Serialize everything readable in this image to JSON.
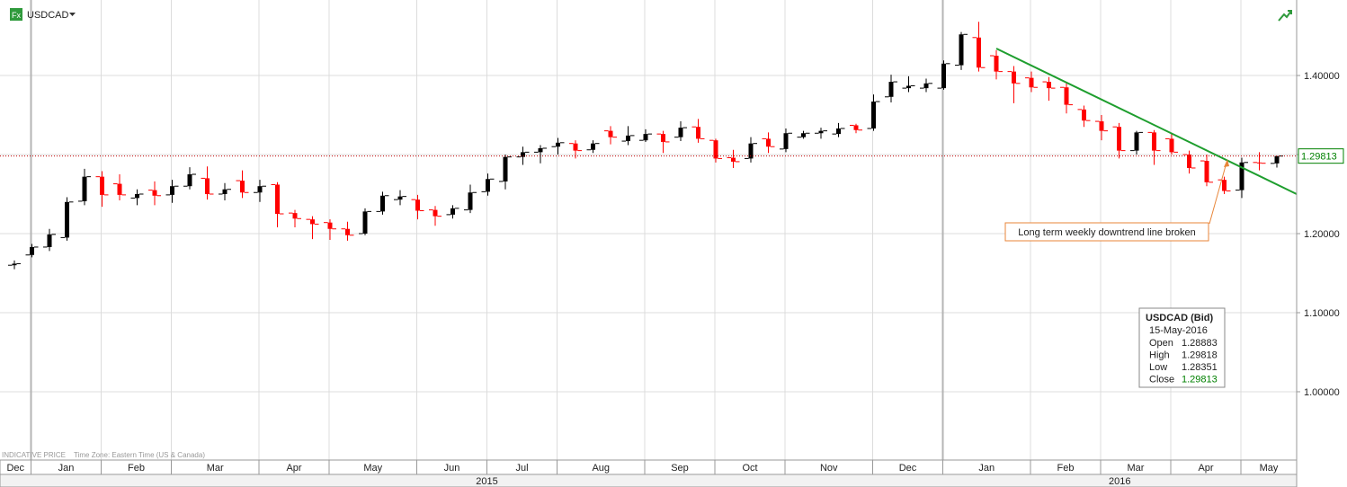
{
  "chart_data": {
    "type": "candlestick",
    "series": [
      {
        "name": "USDCAD",
        "up_color": "#000000",
        "down_color": "#ff0000",
        "open": [
          1.16,
          1.173,
          1.183,
          1.195,
          1.241,
          1.272,
          1.263,
          1.245,
          1.255,
          1.249,
          1.26,
          1.27,
          1.25,
          1.267,
          1.252,
          1.262,
          1.226,
          1.218,
          1.214,
          1.206,
          1.2,
          1.228,
          1.243,
          1.243,
          1.23,
          1.224,
          1.23,
          1.253,
          1.266,
          1.297,
          1.303,
          1.31,
          1.314,
          1.306,
          1.33,
          1.317,
          1.318,
          1.326,
          1.322,
          1.335,
          1.318,
          1.296,
          1.295,
          1.32,
          1.307,
          1.322,
          1.327,
          1.326,
          1.337,
          1.333,
          1.373,
          1.384,
          1.384,
          1.384,
          1.413,
          1.448,
          1.425,
          1.405,
          1.397,
          1.392,
          1.385,
          1.357,
          1.342,
          1.335,
          1.305,
          1.328,
          1.32,
          1.3,
          1.292,
          1.268,
          1.255,
          1.29,
          1.28883
        ],
        "high": [
          1.166,
          1.187,
          1.206,
          1.246,
          1.282,
          1.279,
          1.275,
          1.256,
          1.266,
          1.268,
          1.284,
          1.285,
          1.264,
          1.28,
          1.268,
          1.265,
          1.23,
          1.222,
          1.218,
          1.215,
          1.232,
          1.253,
          1.255,
          1.249,
          1.235,
          1.236,
          1.262,
          1.276,
          1.3,
          1.31,
          1.312,
          1.321,
          1.318,
          1.318,
          1.336,
          1.336,
          1.332,
          1.33,
          1.342,
          1.345,
          1.32,
          1.306,
          1.322,
          1.328,
          1.333,
          1.33,
          1.334,
          1.34,
          1.339,
          1.376,
          1.401,
          1.399,
          1.396,
          1.419,
          1.455,
          1.468,
          1.432,
          1.412,
          1.405,
          1.398,
          1.392,
          1.362,
          1.35,
          1.34,
          1.33,
          1.331,
          1.326,
          1.305,
          1.3,
          1.272,
          1.296,
          1.303,
          1.29818
        ],
        "low": [
          1.155,
          1.17,
          1.178,
          1.191,
          1.236,
          1.234,
          1.242,
          1.236,
          1.236,
          1.239,
          1.256,
          1.243,
          1.242,
          1.245,
          1.24,
          1.208,
          1.208,
          1.193,
          1.192,
          1.191,
          1.198,
          1.224,
          1.236,
          1.218,
          1.21,
          1.219,
          1.226,
          1.248,
          1.256,
          1.287,
          1.289,
          1.3,
          1.295,
          1.302,
          1.313,
          1.312,
          1.316,
          1.302,
          1.317,
          1.315,
          1.29,
          1.283,
          1.29,
          1.302,
          1.303,
          1.32,
          1.32,
          1.322,
          1.327,
          1.33,
          1.366,
          1.379,
          1.379,
          1.382,
          1.407,
          1.405,
          1.395,
          1.365,
          1.379,
          1.368,
          1.352,
          1.335,
          1.318,
          1.295,
          1.3,
          1.287,
          1.3,
          1.276,
          1.26,
          1.25,
          1.245,
          1.28,
          1.28351
        ],
        "close": [
          1.162,
          1.183,
          1.199,
          1.24,
          1.272,
          1.249,
          1.249,
          1.25,
          1.248,
          1.26,
          1.275,
          1.25,
          1.256,
          1.252,
          1.26,
          1.225,
          1.219,
          1.212,
          1.206,
          1.198,
          1.228,
          1.248,
          1.247,
          1.229,
          1.222,
          1.232,
          1.252,
          1.269,
          1.297,
          1.303,
          1.308,
          1.315,
          1.305,
          1.314,
          1.322,
          1.324,
          1.326,
          1.316,
          1.334,
          1.32,
          1.295,
          1.291,
          1.314,
          1.31,
          1.327,
          1.327,
          1.33,
          1.333,
          1.331,
          1.367,
          1.392,
          1.387,
          1.39,
          1.415,
          1.452,
          1.41,
          1.405,
          1.39,
          1.385,
          1.384,
          1.363,
          1.343,
          1.33,
          1.305,
          1.328,
          1.305,
          1.303,
          1.283,
          1.265,
          1.254,
          1.29,
          1.289,
          1.29813
        ]
      }
    ],
    "months": [
      "Dec",
      "Jan",
      "Feb",
      "Mar",
      "Apr",
      "May",
      "Jun",
      "Jul",
      "Aug",
      "Sep",
      "Oct",
      "Nov",
      "Dec",
      "Jan",
      "Feb",
      "Mar",
      "Apr",
      "May"
    ],
    "years": [
      null,
      "2015",
      "2016"
    ],
    "ylim": [
      0.9136,
      1.4955
    ],
    "yticks": [
      {
        "value": 1.0,
        "label": "1.00000"
      },
      {
        "value": 1.1,
        "label": "1.10000"
      },
      {
        "value": 1.2,
        "label": "1.20000"
      },
      {
        "value": 1.3,
        "label": "1.30000"
      },
      {
        "value": 1.4,
        "label": "1.40000"
      }
    ],
    "grid": true,
    "last_price_color": "#008000",
    "annotation": "Long term weekly downtrend line broken",
    "footnote": [
      "INDICATIVE PRICE",
      "Time Zone: Eastern Time (US & Canada)"
    ]
  },
  "header": {
    "icon": "Fx"
  },
  "tooltip": {
    "title": "USDCAD (Bid)",
    "date": "15-May-2016",
    "labels": [
      "Open",
      "High",
      "Low",
      "Close"
    ]
  }
}
